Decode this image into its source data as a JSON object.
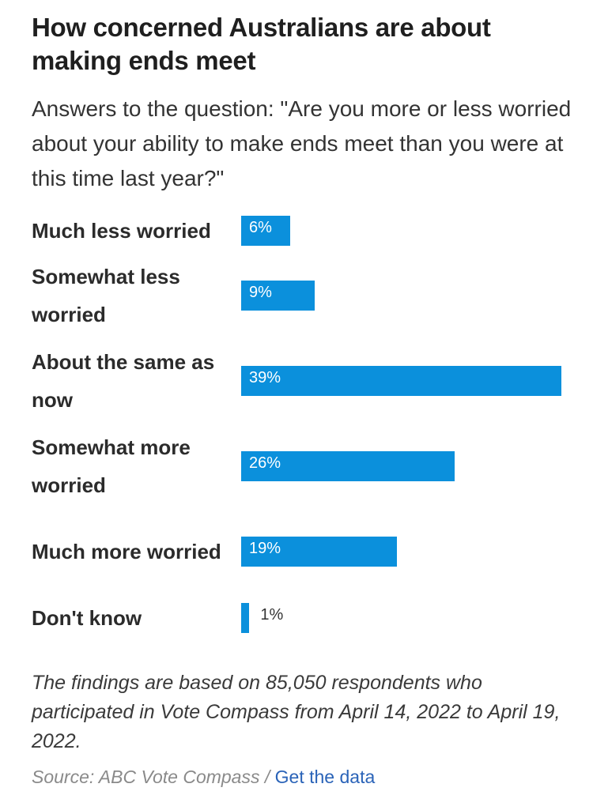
{
  "header": {
    "title": "How concerned Australians are about making ends meet",
    "subtitle": "Answers to the question: \"Are you more or less worried about your ability to make ends meet than you were at this time last year?\""
  },
  "chart_data": {
    "type": "bar",
    "orientation": "horizontal",
    "title": "How concerned Australians are about making ends meet",
    "subtitle": "Answers to the question: \"Are you more or less worried about your ability to make ends meet than you were at this time last year?\"",
    "categories": [
      "Much less worried",
      "Somewhat less worried",
      "About the same as now",
      "Somewhat more worried",
      "Much more worried",
      "Don't know"
    ],
    "values": [
      6,
      9,
      39,
      26,
      19,
      1
    ],
    "value_labels": [
      "6%",
      "9%",
      "39%",
      "26%",
      "19%",
      "1%"
    ],
    "unit": "%",
    "xlim": [
      0,
      39
    ],
    "grid": false,
    "bar_color": "#0b90dc"
  },
  "footer": {
    "notes": "The findings are based on 85,050 respondents who participated in Vote Compass from April 14, 2022 to April 19, 2022.",
    "source_text": "Source: ABC Vote Compass / ",
    "link_text": "Get the data"
  },
  "colors": {
    "bar": "#0b90dc",
    "link": "#2a63b8",
    "muted": "#8a8a8a"
  }
}
